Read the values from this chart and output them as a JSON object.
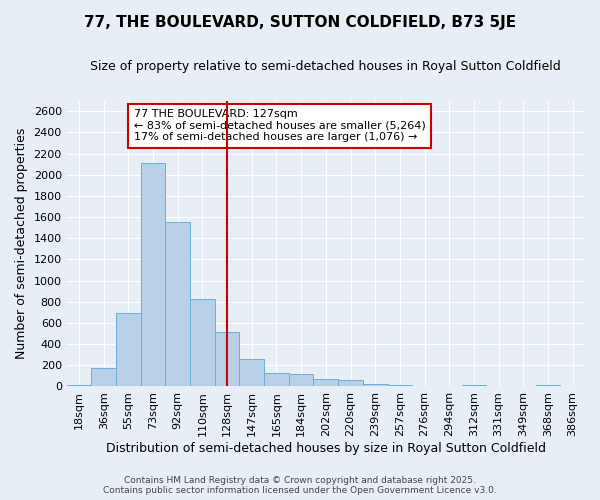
{
  "title": "77, THE BOULEVARD, SUTTON COLDFIELD, B73 5JE",
  "subtitle": "Size of property relative to semi-detached houses in Royal Sutton Coldfield",
  "xlabel": "Distribution of semi-detached houses by size in Royal Sutton Coldfield",
  "ylabel": "Number of semi-detached properties",
  "footer_line1": "Contains HM Land Registry data © Crown copyright and database right 2025.",
  "footer_line2": "Contains public sector information licensed under the Open Government Licence v3.0.",
  "categories": [
    "18sqm",
    "36sqm",
    "55sqm",
    "73sqm",
    "92sqm",
    "110sqm",
    "128sqm",
    "147sqm",
    "165sqm",
    "184sqm",
    "202sqm",
    "220sqm",
    "239sqm",
    "257sqm",
    "276sqm",
    "294sqm",
    "312sqm",
    "331sqm",
    "349sqm",
    "368sqm",
    "386sqm"
  ],
  "values": [
    15,
    170,
    695,
    2110,
    1550,
    825,
    515,
    255,
    125,
    120,
    75,
    65,
    25,
    10,
    5,
    2,
    10,
    1,
    1,
    10,
    1
  ],
  "bar_color": "#b8d0e8",
  "bar_edge_color": "#6baed6",
  "vline_color": "#cc0000",
  "ylim": [
    0,
    2700
  ],
  "yticks": [
    0,
    200,
    400,
    600,
    800,
    1000,
    1200,
    1400,
    1600,
    1800,
    2000,
    2200,
    2400,
    2600
  ],
  "annotation_title": "77 THE BOULEVARD: 127sqm",
  "annotation_line1": "← 83% of semi-detached houses are smaller (5,264)",
  "annotation_line2": "17% of semi-detached houses are larger (1,076) →",
  "annotation_box_color": "#cc0000",
  "bg_color": "#e8eef5",
  "grid_color": "#ffffff",
  "title_fontsize": 11,
  "subtitle_fontsize": 9,
  "ylabel_fontsize": 9,
  "xlabel_fontsize": 9,
  "tick_fontsize": 8,
  "annotation_fontsize": 8,
  "footer_fontsize": 6.5
}
